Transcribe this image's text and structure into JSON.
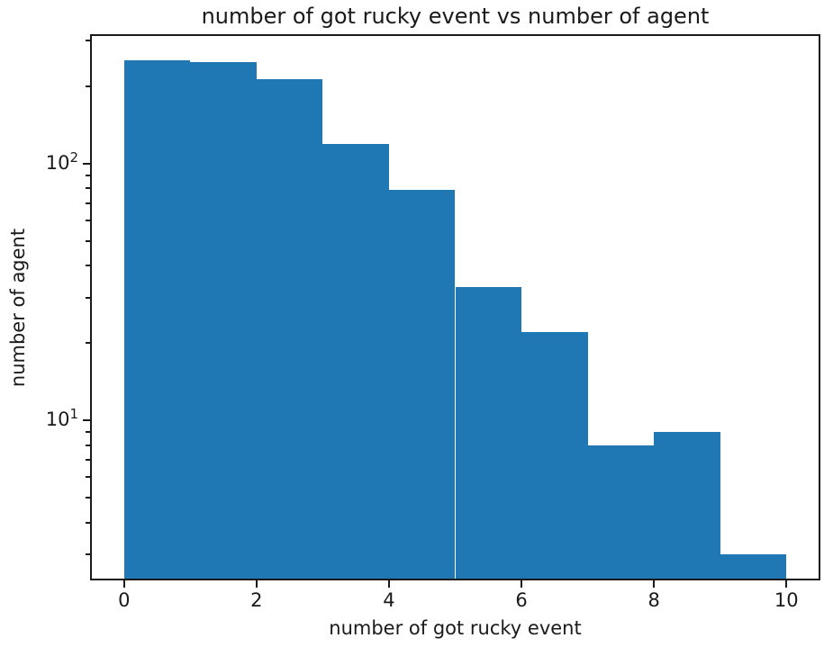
{
  "chart_data": {
    "type": "bar",
    "subtype": "histogram",
    "title": "number of got rucky event vs number of agent",
    "xlabel": "number of got rucky event",
    "ylabel": "number of agent",
    "bin_edges": [
      0,
      1,
      2,
      3,
      4,
      5,
      6,
      7,
      8,
      9,
      10
    ],
    "values": [
      253,
      248,
      213,
      119,
      79,
      33,
      22,
      8,
      9,
      3
    ],
    "bar_color": "#1f77b4",
    "xlim": [
      -0.5,
      10.5
    ],
    "ylim": [
      2.4,
      316
    ],
    "yscale": "log",
    "x_ticks": [
      {
        "v": 0,
        "label": "0"
      },
      {
        "v": 2,
        "label": "2"
      },
      {
        "v": 4,
        "label": "4"
      },
      {
        "v": 6,
        "label": "6"
      },
      {
        "v": 8,
        "label": "8"
      },
      {
        "v": 10,
        "label": "10"
      }
    ],
    "y_major_ticks": [
      {
        "v": 10,
        "base": "10",
        "exp": "1"
      },
      {
        "v": 100,
        "base": "10",
        "exp": "2"
      }
    ],
    "y_minor_ticks": [
      3,
      4,
      5,
      6,
      7,
      8,
      9,
      20,
      30,
      40,
      50,
      60,
      70,
      80,
      90,
      200,
      300
    ],
    "grid": false,
    "legend": null,
    "text_color": "#1a1a1a",
    "spine_color": "#1a1a1a",
    "background_color": "#ffffff"
  }
}
